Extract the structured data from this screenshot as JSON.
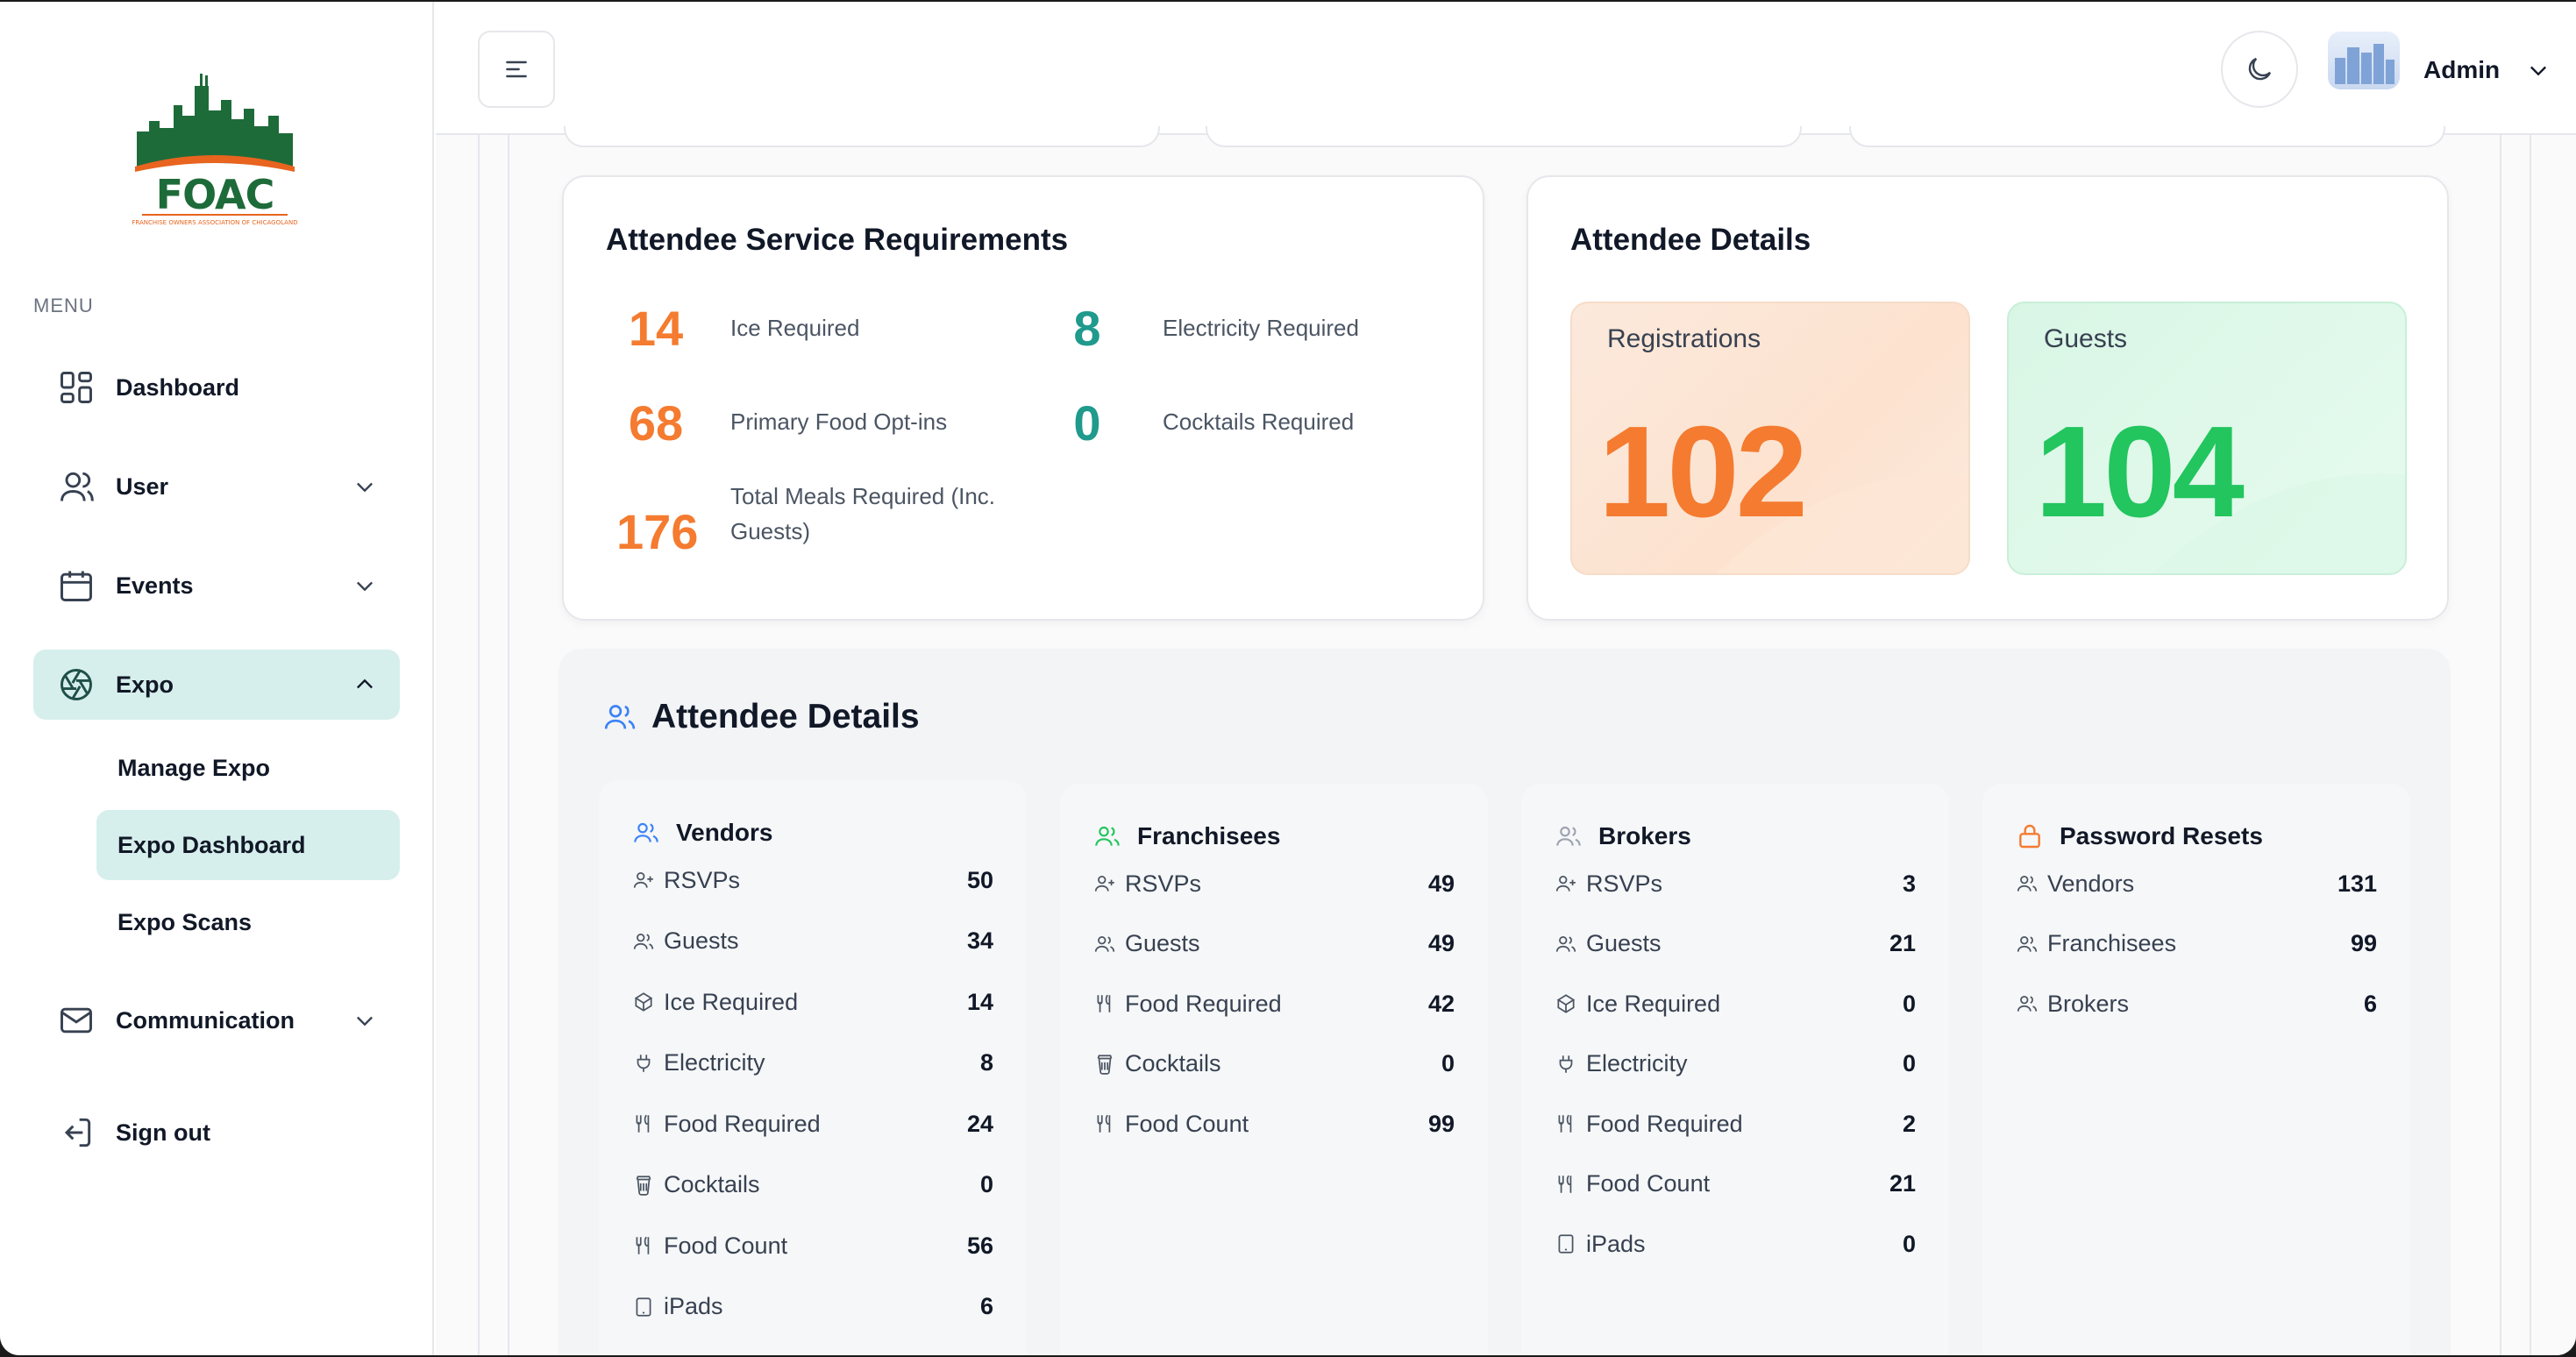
{
  "sidebar": {
    "menu_caption": "MENU",
    "logo_text": "FOAC",
    "logo_subtext": "FRANCHISE OWNERS ASSOCIATION OF CHICAGOLAND",
    "items": [
      {
        "label": "Dashboard",
        "icon": "dashboard-icon"
      },
      {
        "label": "User",
        "icon": "user-icon"
      },
      {
        "label": "Events",
        "icon": "calendar-icon"
      },
      {
        "label": "Expo",
        "icon": "aperture-icon"
      },
      {
        "label": "Communication",
        "icon": "mail-icon"
      },
      {
        "label": "Sign out",
        "icon": "sign-out-icon"
      }
    ],
    "expo_sub": [
      "Manage Expo",
      "Expo Dashboard",
      "Expo Scans"
    ]
  },
  "header": {
    "user_label": "Admin"
  },
  "service_card": {
    "title": "Attendee Service Requirements",
    "stats": [
      {
        "value": "14",
        "label": "Ice Required"
      },
      {
        "value": "8",
        "label": "Electricity Required"
      },
      {
        "value": "68",
        "label": "Primary Food Opt-ins"
      },
      {
        "value": "0",
        "label": "Cocktails Required"
      },
      {
        "value": "176",
        "label": "Total Meals Required (Inc. Guests)"
      }
    ]
  },
  "details_card": {
    "title": "Attendee Details",
    "registrations_label": "Registrations",
    "registrations_value": "102",
    "guests_label": "Guests",
    "guests_value": "104"
  },
  "panel": {
    "title": "Attendee Details",
    "columns": [
      {
        "title": "Vendors",
        "rows": [
          {
            "label": "RSVPs",
            "value": "50",
            "icon": "user-plus-icon"
          },
          {
            "label": "Guests",
            "value": "34",
            "icon": "users-icon"
          },
          {
            "label": "Ice Required",
            "value": "14",
            "icon": "ice-icon"
          },
          {
            "label": "Electricity",
            "value": "8",
            "icon": "plug-icon"
          },
          {
            "label": "Food Required",
            "value": "24",
            "icon": "utensils-icon"
          },
          {
            "label": "Cocktails",
            "value": "0",
            "icon": "cup-icon"
          },
          {
            "label": "Food Count",
            "value": "56",
            "icon": "utensils-icon"
          },
          {
            "label": "iPads",
            "value": "6",
            "icon": "tablet-icon"
          }
        ]
      },
      {
        "title": "Franchisees",
        "rows": [
          {
            "label": "RSVPs",
            "value": "49",
            "icon": "user-plus-icon"
          },
          {
            "label": "Guests",
            "value": "49",
            "icon": "users-icon"
          },
          {
            "label": "Food Required",
            "value": "42",
            "icon": "utensils-icon"
          },
          {
            "label": "Cocktails",
            "value": "0",
            "icon": "cup-icon"
          },
          {
            "label": "Food Count",
            "value": "99",
            "icon": "utensils-icon"
          }
        ]
      },
      {
        "title": "Brokers",
        "rows": [
          {
            "label": "RSVPs",
            "value": "3",
            "icon": "user-plus-icon"
          },
          {
            "label": "Guests",
            "value": "21",
            "icon": "users-icon"
          },
          {
            "label": "Ice Required",
            "value": "0",
            "icon": "ice-icon"
          },
          {
            "label": "Electricity",
            "value": "0",
            "icon": "plug-icon"
          },
          {
            "label": "Food Required",
            "value": "2",
            "icon": "utensils-icon"
          },
          {
            "label": "Food Count",
            "value": "21",
            "icon": "utensils-icon"
          },
          {
            "label": "iPads",
            "value": "0",
            "icon": "tablet-icon"
          }
        ]
      },
      {
        "title": "Password Resets",
        "rows": [
          {
            "label": "Vendors",
            "value": "131",
            "icon": "users-icon"
          },
          {
            "label": "Franchisees",
            "value": "99",
            "icon": "users-icon"
          },
          {
            "label": "Brokers",
            "value": "6",
            "icon": "users-icon"
          }
        ]
      }
    ]
  },
  "colors": {
    "accent_teal": "#1f9a8c",
    "accent_orange": "#f47b30",
    "accent_green": "#22c55e",
    "active_bg": "#d6efec"
  }
}
